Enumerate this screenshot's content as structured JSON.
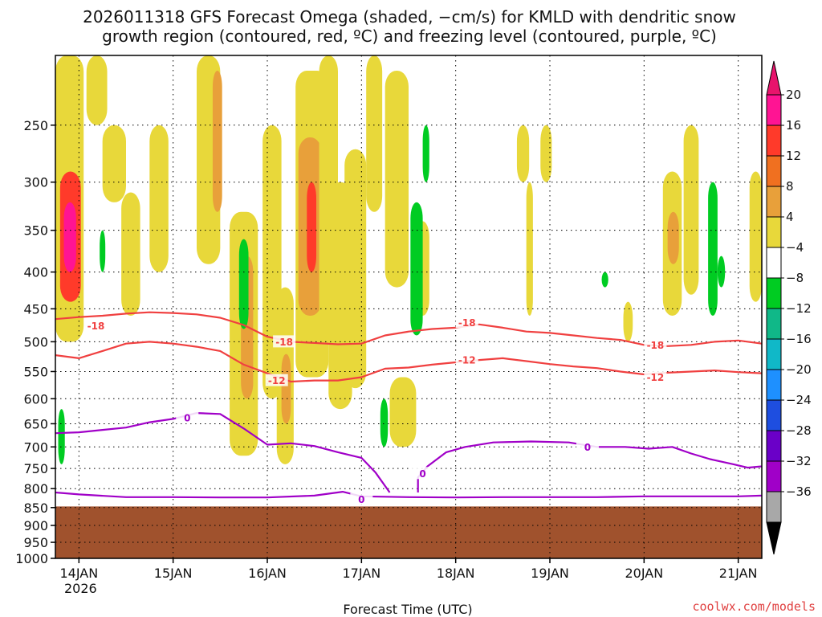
{
  "chart_data": {
    "type": "heatmap",
    "title_line1": "2026011318 GFS Forecast Omega (shaded, −cm/s) for KMLD with dendritic snow",
    "title_line2": "growth region (contoured, red, ºC) and freezing level (contoured, purple, ºC)",
    "xlabel": "Forecast Time (UTC)",
    "credit": "coolwx.com/models",
    "x_ticks": [
      "14JAN",
      "15JAN",
      "16JAN",
      "17JAN",
      "18JAN",
      "19JAN",
      "20JAN",
      "21JAN"
    ],
    "x_year": "2026",
    "x_range_days": [
      -0.25,
      7.25
    ],
    "y_ticks": [
      "250",
      "300",
      "350",
      "400",
      "450",
      "500",
      "550",
      "600",
      "650",
      "700",
      "750",
      "800",
      "850",
      "900",
      "950",
      "1000"
    ],
    "y_range_hpa": [
      200,
      1000
    ],
    "ground_level_hpa": 847,
    "colorbar": {
      "labels": [
        "20",
        "16",
        "12",
        "8",
        "4",
        "−4",
        "−8",
        "−12",
        "−16",
        "−20",
        "−24",
        "−28",
        "−32",
        "−36"
      ],
      "colors": [
        "#ff1493",
        "#ff3a2a",
        "#f07020",
        "#e8a03a",
        "#e8d83a",
        "#ffffff",
        "#00cc22",
        "#10b888",
        "#10b8c8",
        "#1e90ff",
        "#1e4ee0",
        "#6a00c8",
        "#a000c8",
        "#a8a8a8"
      ],
      "top_arrow_color": "#e8146c",
      "bottom_arrow_color": "#000000"
    },
    "contours": {
      "dgz_color": "#f04040",
      "freezing_color": "#a000c8",
      "dgz_levels": [
        "-18",
        "-12"
      ],
      "freezing_level": "0",
      "minus18_line": [
        [
          -0.25,
          465
        ],
        [
          0,
          462
        ],
        [
          0.25,
          460
        ],
        [
          0.5,
          457
        ],
        [
          0.75,
          455
        ],
        [
          1,
          456
        ],
        [
          1.25,
          458
        ],
        [
          1.5,
          463
        ],
        [
          1.75,
          474
        ],
        [
          2,
          492
        ],
        [
          2.25,
          500
        ],
        [
          2.5,
          502
        ],
        [
          2.75,
          504
        ],
        [
          3,
          503
        ],
        [
          3.25,
          490
        ],
        [
          3.5,
          484
        ],
        [
          3.75,
          480
        ],
        [
          4,
          478
        ],
        [
          4.25,
          473
        ],
        [
          4.5,
          478
        ],
        [
          4.75,
          484
        ],
        [
          5,
          486
        ],
        [
          5.25,
          490
        ],
        [
          5.5,
          494
        ],
        [
          5.75,
          497
        ],
        [
          6,
          505
        ],
        [
          6.25,
          507
        ],
        [
          6.5,
          505
        ],
        [
          6.75,
          500
        ],
        [
          7,
          498
        ],
        [
          7.25,
          503
        ]
      ],
      "minus18_labels": [
        [
          0.18,
          475
        ],
        [
          2.18,
          500
        ],
        [
          4.12,
          470
        ],
        [
          6.12,
          505
        ]
      ],
      "minus12_line": [
        [
          -0.25,
          522
        ],
        [
          0,
          527
        ],
        [
          0.25,
          515
        ],
        [
          0.5,
          503
        ],
        [
          0.75,
          500
        ],
        [
          1,
          503
        ],
        [
          1.25,
          508
        ],
        [
          1.5,
          515
        ],
        [
          1.75,
          538
        ],
        [
          2,
          553
        ],
        [
          2.25,
          568
        ],
        [
          2.5,
          566
        ],
        [
          2.75,
          566
        ],
        [
          3,
          560
        ],
        [
          3.25,
          545
        ],
        [
          3.5,
          543
        ],
        [
          3.75,
          538
        ],
        [
          4,
          534
        ],
        [
          4.25,
          530
        ],
        [
          4.5,
          527
        ],
        [
          4.75,
          532
        ],
        [
          5,
          537
        ],
        [
          5.25,
          541
        ],
        [
          5.5,
          544
        ],
        [
          5.75,
          550
        ],
        [
          6,
          555
        ],
        [
          6.25,
          552
        ],
        [
          6.5,
          550
        ],
        [
          6.75,
          548
        ],
        [
          7,
          551
        ],
        [
          7.25,
          553
        ]
      ],
      "minus12_labels": [
        [
          2.1,
          566
        ],
        [
          4.12,
          530
        ],
        [
          6.12,
          560
        ]
      ],
      "zero_line_upper": [
        [
          -0.25,
          670
        ],
        [
          0,
          668
        ],
        [
          0.25,
          663
        ],
        [
          0.5,
          658
        ],
        [
          0.75,
          647
        ],
        [
          1,
          640
        ],
        [
          1.25,
          628
        ],
        [
          1.5,
          630
        ],
        [
          1.75,
          660
        ],
        [
          2,
          695
        ],
        [
          2.25,
          692
        ],
        [
          2.5,
          698
        ],
        [
          2.75,
          712
        ],
        [
          3,
          725
        ],
        [
          3.15,
          760
        ],
        [
          3.3,
          810
        ]
      ],
      "zero_line_upper_labels": [
        [
          1.15,
          638
        ]
      ],
      "zero_line_lower": [
        [
          -0.25,
          810
        ],
        [
          0,
          815
        ],
        [
          0.5,
          822
        ],
        [
          1,
          822
        ],
        [
          1.5,
          823
        ],
        [
          2,
          823
        ],
        [
          2.5,
          818
        ],
        [
          2.8,
          808
        ],
        [
          3,
          820
        ],
        [
          3.5,
          822
        ],
        [
          4,
          823
        ],
        [
          4.5,
          822
        ],
        [
          5,
          822
        ],
        [
          5.5,
          822
        ],
        [
          6,
          820
        ],
        [
          6.5,
          820
        ],
        [
          7,
          820
        ],
        [
          7.25,
          818
        ]
      ],
      "zero_line_lower_labels": [
        [
          3.0,
          828
        ]
      ],
      "zero_line_right": [
        [
          3.6,
          810
        ],
        [
          3.6,
          772
        ],
        [
          3.7,
          745
        ],
        [
          3.9,
          712
        ],
        [
          4.1,
          700
        ],
        [
          4.4,
          690
        ],
        [
          4.8,
          688
        ],
        [
          5.2,
          690
        ],
        [
          5.5,
          700
        ],
        [
          5.8,
          700
        ],
        [
          6.05,
          704
        ],
        [
          6.3,
          700
        ],
        [
          6.5,
          715
        ],
        [
          6.7,
          728
        ],
        [
          6.95,
          740
        ],
        [
          7.1,
          748
        ],
        [
          7.25,
          745
        ]
      ],
      "zero_line_right_labels": [
        [
          3.65,
          762
        ],
        [
          5.4,
          700
        ]
      ]
    },
    "omega_blobs": [
      {
        "d0": -0.25,
        "d1": 0.05,
        "p0": 200,
        "p1": 500,
        "v": 7
      },
      {
        "d0": -0.2,
        "d1": 0.02,
        "p0": 290,
        "p1": 440,
        "v": 13
      },
      {
        "d0": -0.16,
        "d1": -0.03,
        "p0": 320,
        "p1": 400,
        "v": 18
      },
      {
        "d0": 0.08,
        "d1": 0.3,
        "p0": 200,
        "p1": 250,
        "v": 5
      },
      {
        "d0": 0.25,
        "d1": 0.5,
        "p0": 250,
        "p1": 320,
        "v": 5
      },
      {
        "d0": 0.45,
        "d1": 0.65,
        "p0": 310,
        "p1": 460,
        "v": 5
      },
      {
        "d0": 0.75,
        "d1": 0.95,
        "p0": 250,
        "p1": 400,
        "v": 5
      },
      {
        "d0": 1.25,
        "d1": 1.5,
        "p0": 200,
        "p1": 390,
        "v": 5
      },
      {
        "d0": 1.42,
        "d1": 1.52,
        "p0": 210,
        "p1": 330,
        "v": 10
      },
      {
        "d0": 1.6,
        "d1": 1.9,
        "p0": 330,
        "p1": 720,
        "v": 5
      },
      {
        "d0": 1.72,
        "d1": 1.85,
        "p0": 380,
        "p1": 600,
        "v": 9
      },
      {
        "d0": 1.95,
        "d1": 2.15,
        "p0": 250,
        "p1": 600,
        "v": 5
      },
      {
        "d0": 2.1,
        "d1": 2.28,
        "p0": 420,
        "p1": 740,
        "v": 6
      },
      {
        "d0": 2.15,
        "d1": 2.25,
        "p0": 520,
        "p1": 650,
        "v": 10
      },
      {
        "d0": 2.3,
        "d1": 2.65,
        "p0": 210,
        "p1": 560,
        "v": 5
      },
      {
        "d0": 2.33,
        "d1": 2.58,
        "p0": 260,
        "p1": 460,
        "v": 9
      },
      {
        "d0": 2.42,
        "d1": 2.52,
        "p0": 300,
        "p1": 400,
        "v": 13
      },
      {
        "d0": 2.55,
        "d1": 2.75,
        "p0": 200,
        "p1": 500,
        "v": 5
      },
      {
        "d0": 2.65,
        "d1": 2.9,
        "p0": 300,
        "p1": 620,
        "v": 5
      },
      {
        "d0": 2.82,
        "d1": 3.05,
        "p0": 270,
        "p1": 580,
        "v": 5
      },
      {
        "d0": 3.05,
        "d1": 3.22,
        "p0": 200,
        "p1": 330,
        "v": 5
      },
      {
        "d0": 3.25,
        "d1": 3.5,
        "p0": 210,
        "p1": 420,
        "v": 5
      },
      {
        "d0": 3.3,
        "d1": 3.58,
        "p0": 560,
        "p1": 700,
        "v": 5
      },
      {
        "d0": 3.58,
        "d1": 3.72,
        "p0": 340,
        "p1": 460,
        "v": 5
      },
      {
        "d0": 4.65,
        "d1": 4.78,
        "p0": 250,
        "p1": 300,
        "v": 5
      },
      {
        "d0": 4.75,
        "d1": 4.82,
        "p0": 300,
        "p1": 460,
        "v": 5
      },
      {
        "d0": 4.9,
        "d1": 5.02,
        "p0": 250,
        "p1": 300,
        "v": 5
      },
      {
        "d0": 5.78,
        "d1": 5.88,
        "p0": 440,
        "p1": 500,
        "v": 5
      },
      {
        "d0": 6.2,
        "d1": 6.4,
        "p0": 290,
        "p1": 460,
        "v": 5
      },
      {
        "d0": 6.25,
        "d1": 6.37,
        "p0": 330,
        "p1": 390,
        "v": 8
      },
      {
        "d0": 6.42,
        "d1": 6.58,
        "p0": 250,
        "p1": 430,
        "v": 5
      },
      {
        "d0": 7.12,
        "d1": 7.25,
        "p0": 290,
        "p1": 440,
        "v": 5
      },
      {
        "d0": -0.22,
        "d1": -0.15,
        "p0": 620,
        "p1": 740,
        "v": -6
      },
      {
        "d0": 0.22,
        "d1": 0.28,
        "p0": 350,
        "p1": 400,
        "v": -6
      },
      {
        "d0": 1.7,
        "d1": 1.8,
        "p0": 360,
        "p1": 480,
        "v": -6
      },
      {
        "d0": 3.2,
        "d1": 3.28,
        "p0": 600,
        "p1": 700,
        "v": -6
      },
      {
        "d0": 3.52,
        "d1": 3.65,
        "p0": 320,
        "p1": 490,
        "v": -6
      },
      {
        "d0": 3.65,
        "d1": 3.72,
        "p0": 250,
        "p1": 300,
        "v": -6
      },
      {
        "d0": 6.68,
        "d1": 6.78,
        "p0": 300,
        "p1": 460,
        "v": -6
      },
      {
        "d0": 6.78,
        "d1": 6.86,
        "p0": 380,
        "p1": 420,
        "v": -6
      },
      {
        "d0": 5.55,
        "d1": 5.62,
        "p0": 400,
        "p1": 420,
        "v": -6
      }
    ]
  }
}
